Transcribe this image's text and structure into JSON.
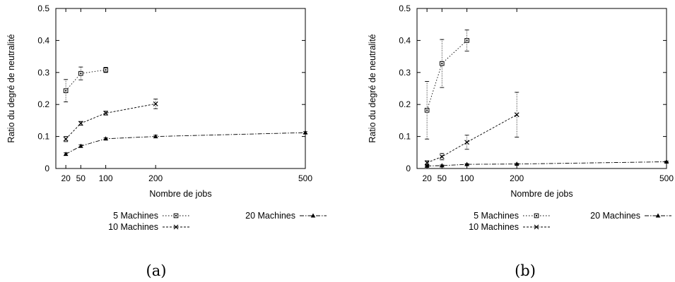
{
  "chart_data": [
    {
      "type": "line",
      "caption": "(a)",
      "xlabel": "Nombre de jobs",
      "ylabel": "Ratio du degré de neutralité",
      "xlim": [
        0,
        500
      ],
      "ylim": [
        0,
        0.5
      ],
      "xticks": [
        20,
        50,
        100,
        200,
        500
      ],
      "yticks": [
        0,
        0.1,
        0.2,
        0.3,
        0.4,
        0.5
      ],
      "ytick_labels": [
        "0",
        "0.1",
        "0.2",
        "0.3",
        "0.4",
        "0.5"
      ],
      "series": [
        {
          "name": "5 Machines",
          "marker": "square",
          "x": [
            20,
            50,
            100
          ],
          "y": [
            0.243,
            0.297,
            0.308
          ],
          "err": [
            0.035,
            0.02,
            0.008
          ]
        },
        {
          "name": "10 Machines",
          "marker": "x",
          "x": [
            20,
            50,
            100,
            200
          ],
          "y": [
            0.092,
            0.141,
            0.173,
            0.202
          ],
          "err": [
            0.008,
            0.006,
            0.006,
            0.015
          ]
        },
        {
          "name": "20 Machines",
          "marker": "triangle",
          "x": [
            20,
            50,
            100,
            200,
            500
          ],
          "y": [
            0.045,
            0.07,
            0.093,
            0.1,
            0.112
          ],
          "err": [
            0.004,
            0.004,
            0.003,
            0.004,
            0.003
          ]
        }
      ]
    },
    {
      "type": "line",
      "caption": "(b)",
      "xlabel": "Nombre de jobs",
      "ylabel": "Ratio du degré de neutralité",
      "xlim": [
        0,
        500
      ],
      "ylim": [
        0,
        0.5
      ],
      "xticks": [
        20,
        50,
        100,
        200,
        500
      ],
      "yticks": [
        0,
        0.1,
        0.2,
        0.3,
        0.4,
        0.5
      ],
      "ytick_labels": [
        "0",
        "0.1",
        "0.2",
        "0.3",
        "0.4",
        "0.5"
      ],
      "series": [
        {
          "name": "5 Machines",
          "marker": "square",
          "x": [
            20,
            50,
            100
          ],
          "y": [
            0.182,
            0.328,
            0.4
          ],
          "err": [
            0.09,
            0.075,
            0.033
          ]
        },
        {
          "name": "10 Machines",
          "marker": "x",
          "x": [
            20,
            50,
            100,
            200
          ],
          "y": [
            0.018,
            0.037,
            0.082,
            0.168
          ],
          "err": [
            0.006,
            0.01,
            0.022,
            0.07
          ]
        },
        {
          "name": "20 Machines",
          "marker": "triangle",
          "x": [
            20,
            50,
            100,
            200,
            500
          ],
          "y": [
            0.008,
            0.009,
            0.013,
            0.014,
            0.021
          ],
          "err": [
            0.002,
            0.002,
            0.002,
            0.002,
            0.002
          ]
        }
      ]
    }
  ]
}
